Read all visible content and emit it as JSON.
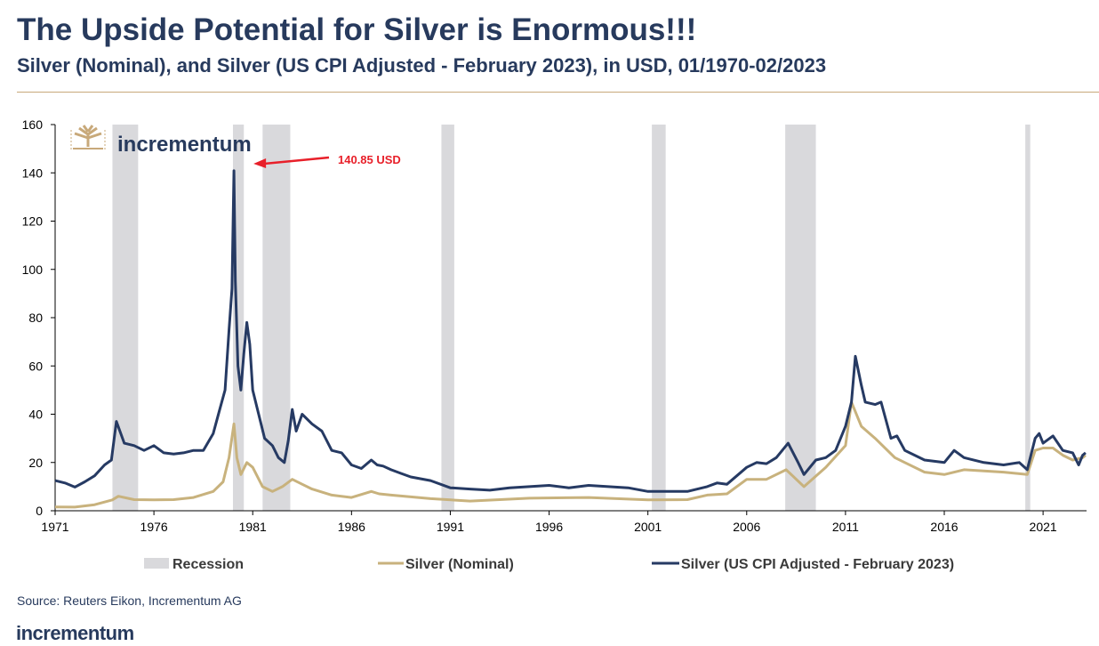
{
  "header": {
    "title": "The Upside Potential for Silver is Enormous!!!",
    "subtitle": "Silver (Nominal), and Silver (US CPI Adjusted - February 2023), in USD, 01/1970-02/2023"
  },
  "logo": {
    "text": "incrementum",
    "icon": "tree-icon"
  },
  "source": "Source: Reuters Eikon, Incrementum AG",
  "footer_brand": "incrementum",
  "colors": {
    "nominal": "#c8b27d",
    "adjusted": "#263a63",
    "recession": "#d9d9dc",
    "annotation": "#e8202a",
    "axis": "#000000"
  },
  "chart_data": {
    "type": "line",
    "title": "Silver (Nominal), and Silver (US CPI Adjusted - February 2023), in USD, 01/1970-02/2023",
    "xlabel": "",
    "ylabel": "",
    "xlim": [
      1971,
      2023.2
    ],
    "ylim": [
      0,
      160
    ],
    "x_ticks": [
      1971,
      1976,
      1981,
      1986,
      1991,
      1996,
      2001,
      2006,
      2011,
      2016,
      2021
    ],
    "y_ticks": [
      0,
      20,
      40,
      60,
      80,
      100,
      120,
      140,
      160
    ],
    "grid": false,
    "legend_position": "bottom",
    "legend": [
      {
        "key": "recession",
        "label": "Recession",
        "swatch": "box"
      },
      {
        "key": "nominal",
        "label": "Silver (Nominal)",
        "swatch": "line"
      },
      {
        "key": "adjusted",
        "label": "Silver (US CPI Adjusted - February 2023)",
        "swatch": "line"
      }
    ],
    "recessions": [
      [
        1973.9,
        1975.2
      ],
      [
        1980.0,
        1980.55
      ],
      [
        1981.5,
        1982.9
      ],
      [
        1990.55,
        1991.2
      ],
      [
        2001.2,
        2001.9
      ],
      [
        2007.95,
        2009.5
      ],
      [
        2020.1,
        2020.35
      ]
    ],
    "annotation": {
      "label": "140.85 USD",
      "x": 1980.05,
      "y": 140.85
    },
    "series": [
      {
        "name": "Silver (US CPI Adjusted - February 2023)",
        "key": "adjusted",
        "x": [
          1971,
          1971.5,
          1972,
          1972.5,
          1973,
          1973.5,
          1973.85,
          1974.1,
          1974.5,
          1975,
          1975.5,
          1976,
          1976.5,
          1977,
          1977.5,
          1978,
          1978.5,
          1979,
          1979.3,
          1979.6,
          1979.8,
          1979.95,
          1980.05,
          1980.12,
          1980.25,
          1980.4,
          1980.55,
          1980.7,
          1980.85,
          1981,
          1981.3,
          1981.6,
          1982,
          1982.3,
          1982.6,
          1982.8,
          1983,
          1983.2,
          1983.5,
          1984,
          1984.5,
          1985,
          1985.5,
          1986,
          1986.5,
          1987,
          1987.3,
          1987.6,
          1988,
          1988.5,
          1989,
          1990,
          1991,
          1992,
          1993,
          1994,
          1995,
          1996,
          1997,
          1998,
          1999,
          2000,
          2001,
          2002,
          2003,
          2004,
          2004.5,
          2005,
          2006,
          2006.5,
          2007,
          2007.5,
          2008.1,
          2008.6,
          2008.9,
          2009.5,
          2010,
          2010.5,
          2011,
          2011.3,
          2011.5,
          2011.8,
          2012,
          2012.5,
          2012.8,
          2013.3,
          2013.6,
          2014,
          2015,
          2016,
          2016.5,
          2017,
          2018,
          2019,
          2019.8,
          2020.2,
          2020.6,
          2020.8,
          2021,
          2021.5,
          2022,
          2022.5,
          2022.8,
          2023,
          2023.15
        ],
        "values": [
          12.5,
          11.5,
          9.8,
          12,
          14.5,
          19,
          21,
          37,
          28,
          27,
          25,
          27,
          24,
          23.5,
          24,
          25,
          25,
          32,
          41,
          50,
          75,
          92,
          140.85,
          95,
          60,
          50,
          65,
          78,
          69,
          50,
          40,
          30,
          27,
          22,
          20,
          29,
          42,
          33,
          40,
          36,
          33,
          25,
          24,
          19,
          17.5,
          21,
          19,
          18.5,
          17,
          15.5,
          14,
          12.5,
          9.5,
          9,
          8.5,
          9.5,
          10,
          10.5,
          9.5,
          10.5,
          10,
          9.5,
          8,
          8,
          8,
          10,
          11.5,
          11,
          18,
          20,
          19.5,
          22,
          28,
          20,
          15,
          21,
          22,
          25,
          35,
          45,
          64,
          52,
          45,
          44,
          45,
          30,
          31,
          25,
          21,
          20,
          25,
          22,
          20,
          19,
          20,
          17,
          30,
          32,
          28,
          31,
          25,
          24,
          19,
          23,
          24
        ]
      },
      {
        "name": "Silver (Nominal)",
        "key": "nominal",
        "x": [
          1971,
          1972,
          1973,
          1973.9,
          1974.2,
          1975,
          1976,
          1977,
          1978,
          1979,
          1979.5,
          1979.8,
          1980.05,
          1980.2,
          1980.4,
          1980.7,
          1981,
          1981.5,
          1982,
          1982.5,
          1983,
          1983.5,
          1984,
          1985,
          1986,
          1987,
          1987.4,
          1988,
          1990,
          1992,
          1995,
          1998,
          2001,
          2003,
          2004,
          2005,
          2006,
          2007,
          2008,
          2008.9,
          2010,
          2011,
          2011.3,
          2011.8,
          2012.5,
          2013.5,
          2014,
          2015,
          2016,
          2017,
          2019,
          2020.2,
          2020.6,
          2021,
          2021.5,
          2022,
          2022.5,
          2023,
          2023.15
        ],
        "values": [
          1.6,
          1.5,
          2.5,
          4.5,
          6,
          4.6,
          4.5,
          4.6,
          5.5,
          8,
          12,
          22,
          36,
          22,
          15,
          20,
          18,
          10,
          8,
          10,
          13,
          11,
          9,
          6.5,
          5.5,
          8,
          7,
          6.5,
          5,
          4,
          5.2,
          5.5,
          4.5,
          4.6,
          6.5,
          7,
          13,
          13,
          17,
          10,
          18,
          27,
          45,
          35,
          30,
          22,
          20,
          16,
          15,
          17,
          16,
          15,
          25,
          26,
          26,
          23,
          21,
          22,
          23
        ]
      }
    ]
  }
}
